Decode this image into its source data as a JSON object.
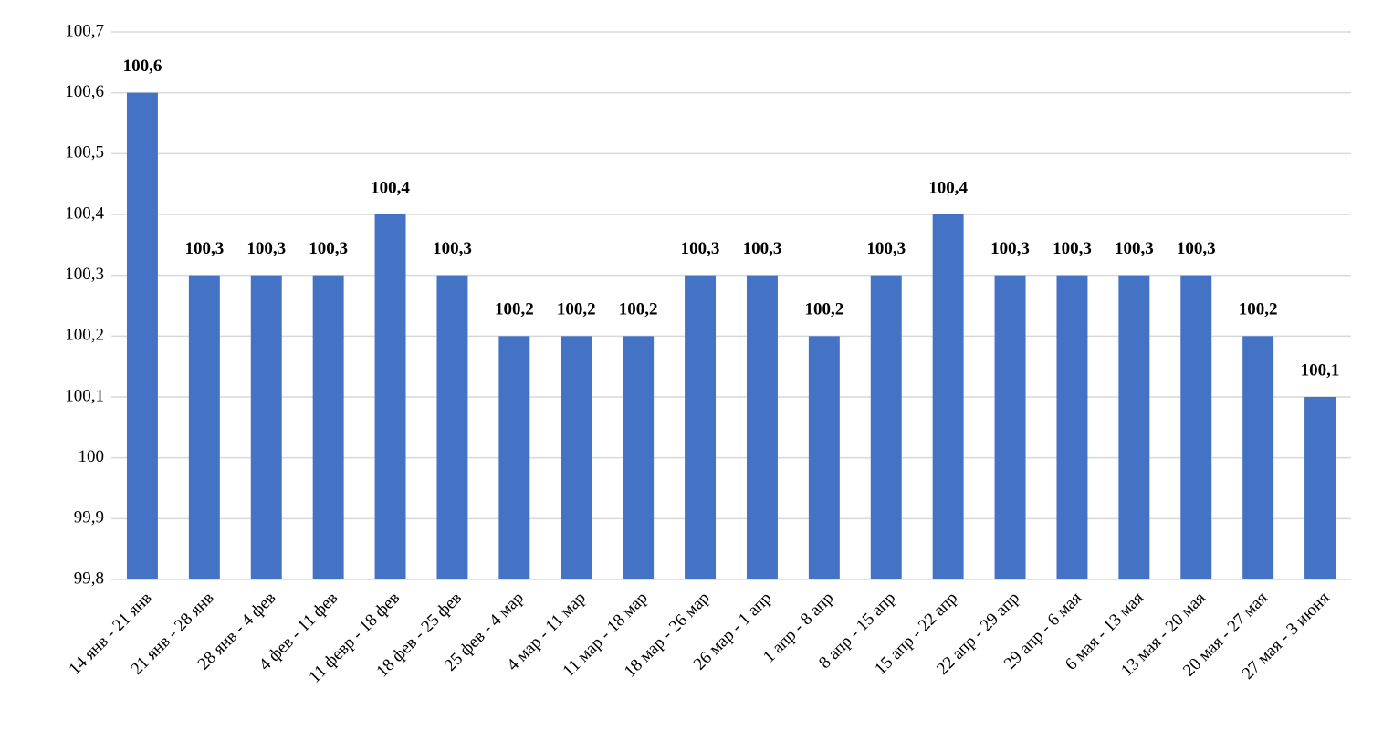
{
  "chart_data": {
    "type": "bar",
    "categories": [
      "14 янв - 21 янв",
      "21 янв - 28 янв",
      "28 янв - 4 фев",
      "4 фев - 11 фев",
      "11 февр - 18 фев",
      "18 фев - 25 фев",
      "25 фев - 4 мар",
      "4 мар - 11 мар",
      "11 мар - 18 мар",
      "18 мар - 26 мар",
      "26 мар - 1 апр",
      "1 апр - 8 апр",
      "8 апр - 15 апр",
      "15 апр - 22 апр",
      "22 апр - 29 апр",
      "29 апр - 6 мая",
      "6 мая - 13 мая",
      "13 мая - 20 мая",
      "20 мая - 27 мая",
      "27 мая - 3 июня"
    ],
    "values": [
      100.6,
      100.3,
      100.3,
      100.3,
      100.4,
      100.3,
      100.2,
      100.2,
      100.2,
      100.3,
      100.3,
      100.2,
      100.3,
      100.4,
      100.3,
      100.3,
      100.3,
      100.3,
      100.2,
      100.1
    ],
    "value_labels": [
      "100,6",
      "100,3",
      "100,3",
      "100,3",
      "100,4",
      "100,3",
      "100,2",
      "100,2",
      "100,2",
      "100,3",
      "100,3",
      "100,2",
      "100,3",
      "100,4",
      "100,3",
      "100,3",
      "100,3",
      "100,3",
      "100,2",
      "100,1"
    ],
    "color": "#4472c4",
    "ylim": [
      99.8,
      100.7
    ],
    "yticks": [
      {
        "value": 99.8,
        "label": "99,8"
      },
      {
        "value": 99.9,
        "label": "99,9"
      },
      100,
      {
        "value": 100.1,
        "label": "100,1"
      },
      {
        "value": 100.2,
        "label": "100,2"
      },
      {
        "value": 100.3,
        "label": "100,3"
      },
      {
        "value": 100.4,
        "label": "100,4"
      },
      {
        "value": 100.5,
        "label": "100,5"
      },
      {
        "value": 100.6,
        "label": "100,6"
      },
      {
        "value": 100.7,
        "label": "100,7"
      }
    ],
    "grid": true
  }
}
